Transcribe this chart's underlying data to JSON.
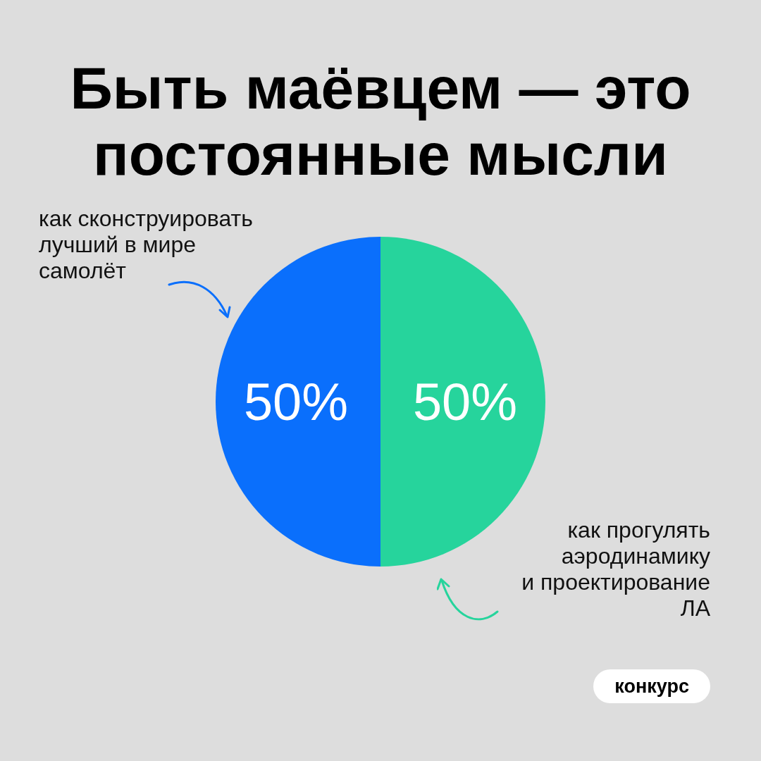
{
  "chart_data": {
    "type": "pie",
    "title": "Быть маёвцем — это постоянные мысли",
    "categories": [
      "как сконструировать\nлучший в мире\nсамолёт",
      "как прогулять\nаэродинамику\nи проектирование\nЛА"
    ],
    "values": [
      50,
      50
    ],
    "colors": [
      "#0a6ffc",
      "#26d49c"
    ],
    "value_labels": [
      "50%",
      "50%"
    ],
    "annotations": [
      "конкурс"
    ]
  }
}
